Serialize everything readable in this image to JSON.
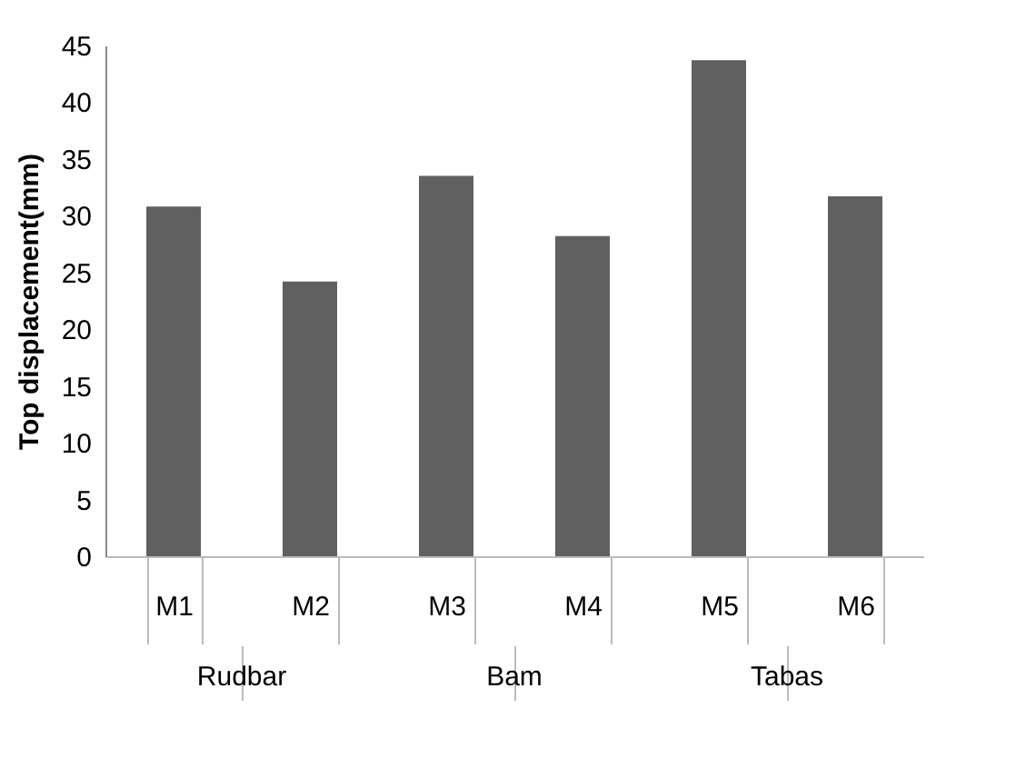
{
  "chart_data": {
    "type": "bar",
    "ylabel": "Top displacement(mm)",
    "categories": [
      "M1",
      "M2",
      "M3",
      "M4",
      "M5",
      "M6"
    ],
    "values": [
      30.8,
      24.2,
      33.5,
      28.2,
      43.7,
      31.7
    ],
    "color": "#606060",
    "ylim": [
      0,
      45
    ],
    "yticks": [
      0,
      5,
      10,
      15,
      20,
      25,
      30,
      35,
      40,
      45
    ],
    "grid": false,
    "annotations": [
      "Rudbar",
      "Bam",
      "Tabas"
    ]
  }
}
